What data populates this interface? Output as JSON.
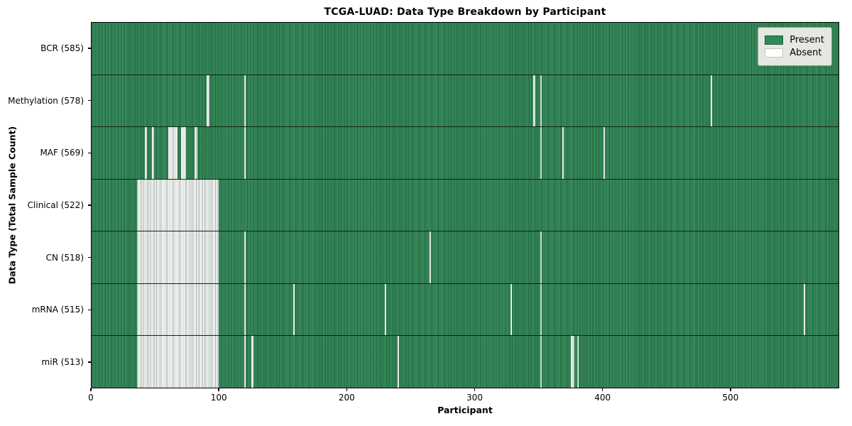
{
  "title": "TCGA-LUAD: Data Type Breakdown by Participant",
  "xlabel": "Participant",
  "ylabel": "Data Type (Total Sample Count)",
  "colors": {
    "present": "#2e8b57",
    "present_edge": "#1d5b38",
    "absent": "#ffffff",
    "absent_swatch_border": "#c0c6bf",
    "legend_bg": "#e4e8e1",
    "plot_border": "#000000",
    "figure_bg": "#ffffff"
  },
  "chart_data": {
    "type": "heatmap",
    "title": "TCGA-LUAD: Data Type Breakdown by Participant",
    "xlabel": "Participant",
    "ylabel": "Data Type (Total Sample Count)",
    "x_axis": {
      "min": 0,
      "max": 585,
      "ticks": [
        0,
        100,
        200,
        300,
        400,
        500
      ]
    },
    "legend_position": "upper right",
    "legend": [
      {
        "label": "Present",
        "color": "#2e8b57"
      },
      {
        "label": "Absent",
        "color": "#ffffff"
      }
    ],
    "rows": [
      {
        "label": "BCR (585)",
        "data_type": "BCR",
        "sample_count": 585,
        "absent_segments": []
      },
      {
        "label": "Methylation (578)",
        "data_type": "Methylation",
        "sample_count": 578,
        "absent_segments": [
          [
            90.0,
            92.1
          ],
          [
            119.4,
            120.6
          ],
          [
            346.0,
            347.3
          ],
          [
            351.2,
            352.4
          ],
          [
            484.7,
            486.2
          ]
        ]
      },
      {
        "label": "MAF (569)",
        "data_type": "MAF",
        "sample_count": 569,
        "absent_segments": [
          [
            41.5,
            43.5
          ],
          [
            47.2,
            48.7
          ],
          [
            60.3,
            67.3
          ],
          [
            70.0,
            73.7
          ],
          [
            80.5,
            82.9
          ],
          [
            119.4,
            120.6
          ],
          [
            351.2,
            352.4
          ],
          [
            368.7,
            370.0
          ],
          [
            400.8,
            402.0
          ]
        ]
      },
      {
        "label": "Clinical (522)",
        "data_type": "Clinical",
        "sample_count": 522,
        "absent_segments": [
          [
            35.5,
            99.3
          ]
        ]
      },
      {
        "label": "CN (518)",
        "data_type": "CN",
        "sample_count": 518,
        "absent_segments": [
          [
            35.5,
            99.3
          ],
          [
            119.4,
            120.6
          ],
          [
            264.5,
            265.8
          ],
          [
            351.2,
            352.4
          ]
        ]
      },
      {
        "label": "mRNA (515)",
        "data_type": "mRNA",
        "sample_count": 515,
        "absent_segments": [
          [
            35.5,
            99.3
          ],
          [
            119.4,
            120.6
          ],
          [
            157.7,
            159.0
          ],
          [
            229.7,
            231.0
          ],
          [
            328.0,
            329.3
          ],
          [
            351.2,
            352.4
          ],
          [
            557.7,
            559.0
          ]
        ]
      },
      {
        "label": "miR (513)",
        "data_type": "miR",
        "sample_count": 513,
        "absent_segments": [
          [
            35.5,
            99.3
          ],
          [
            119.4,
            120.6
          ],
          [
            125.3,
            126.6
          ],
          [
            239.6,
            240.9
          ],
          [
            351.2,
            352.4
          ],
          [
            375.5,
            378.0
          ],
          [
            380.3,
            381.6
          ]
        ]
      }
    ]
  }
}
